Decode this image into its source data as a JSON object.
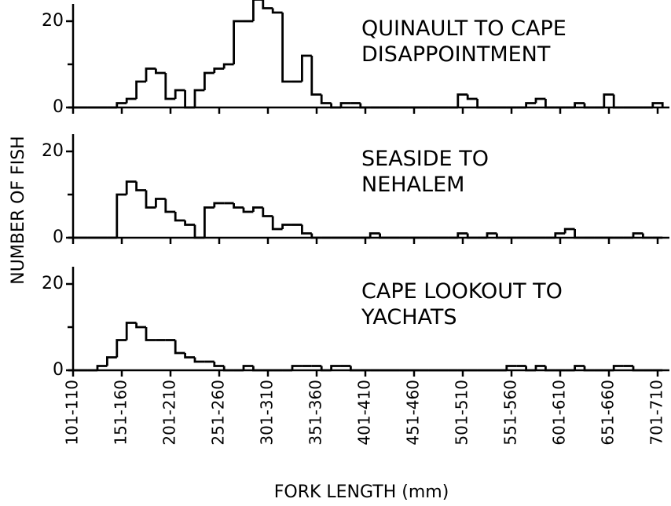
{
  "chart_data": [
    {
      "type": "bar",
      "title": [
        "QUINAULT TO CAPE",
        "DISAPPOINTMENT"
      ],
      "ylim": [
        0,
        24
      ],
      "yticks": [
        0,
        20
      ],
      "yminor": [
        10
      ],
      "color": "#000000",
      "values": [
        0,
        0,
        0,
        0,
        0,
        1,
        2,
        6,
        9,
        8,
        2,
        4,
        0,
        4,
        8,
        9,
        10,
        20,
        20,
        25,
        23,
        22,
        6,
        6,
        12,
        3,
        1,
        0,
        1,
        1,
        0,
        0,
        0,
        0,
        0,
        0,
        0,
        0,
        0,
        0,
        3,
        2,
        0,
        0,
        0,
        0,
        0,
        1,
        2,
        0,
        0,
        0,
        1,
        0,
        0,
        3,
        0,
        0,
        0,
        0,
        1
      ]
    },
    {
      "type": "bar",
      "title": [
        "SEASIDE TO",
        "NEHALEM"
      ],
      "ylabel": "NUMBER OF FISH",
      "ylim": [
        0,
        24
      ],
      "yticks": [
        0,
        20
      ],
      "yminor": [
        10
      ],
      "color": "#000000",
      "values": [
        0,
        0,
        0,
        0,
        0,
        10,
        13,
        11,
        7,
        9,
        6,
        4,
        3,
        0,
        7,
        8,
        8,
        7,
        6,
        7,
        5,
        2,
        3,
        3,
        1,
        0,
        0,
        0,
        0,
        0,
        0,
        1,
        0,
        0,
        0,
        0,
        0,
        0,
        0,
        0,
        1,
        0,
        0,
        1,
        0,
        0,
        0,
        0,
        0,
        0,
        1,
        2,
        0,
        0,
        0,
        0,
        0,
        0,
        1,
        0,
        0
      ]
    },
    {
      "type": "bar",
      "title": [
        "CAPE LOOKOUT TO",
        "YACHATS"
      ],
      "xlabel": "FORK LENGTH (mm)",
      "ylim": [
        0,
        24
      ],
      "yticks": [
        0,
        20
      ],
      "yminor": [
        10
      ],
      "color": "#000000",
      "categories": [
        "101-110",
        null,
        null,
        null,
        null,
        "151-160",
        null,
        null,
        null,
        null,
        "201-210",
        null,
        null,
        null,
        null,
        "251-260",
        null,
        null,
        null,
        null,
        "301-310",
        null,
        null,
        null,
        null,
        "351-360",
        null,
        null,
        null,
        null,
        "401-410",
        null,
        null,
        null,
        null,
        "451-460",
        null,
        null,
        null,
        null,
        "501-510",
        null,
        null,
        null,
        null,
        "551-560",
        null,
        null,
        null,
        null,
        "601-610",
        null,
        null,
        null,
        null,
        "651-660",
        null,
        null,
        null,
        null,
        "701-710"
      ],
      "values": [
        0,
        0,
        0,
        1,
        3,
        7,
        11,
        10,
        7,
        7,
        7,
        4,
        3,
        2,
        2,
        1,
        0,
        0,
        1,
        0,
        0,
        0,
        0,
        1,
        1,
        1,
        0,
        1,
        1,
        0,
        0,
        0,
        0,
        0,
        0,
        0,
        0,
        0,
        0,
        0,
        0,
        0,
        0,
        0,
        0,
        1,
        1,
        0,
        1,
        0,
        0,
        0,
        1,
        0,
        0,
        0,
        1,
        1,
        0,
        0,
        0
      ]
    }
  ]
}
